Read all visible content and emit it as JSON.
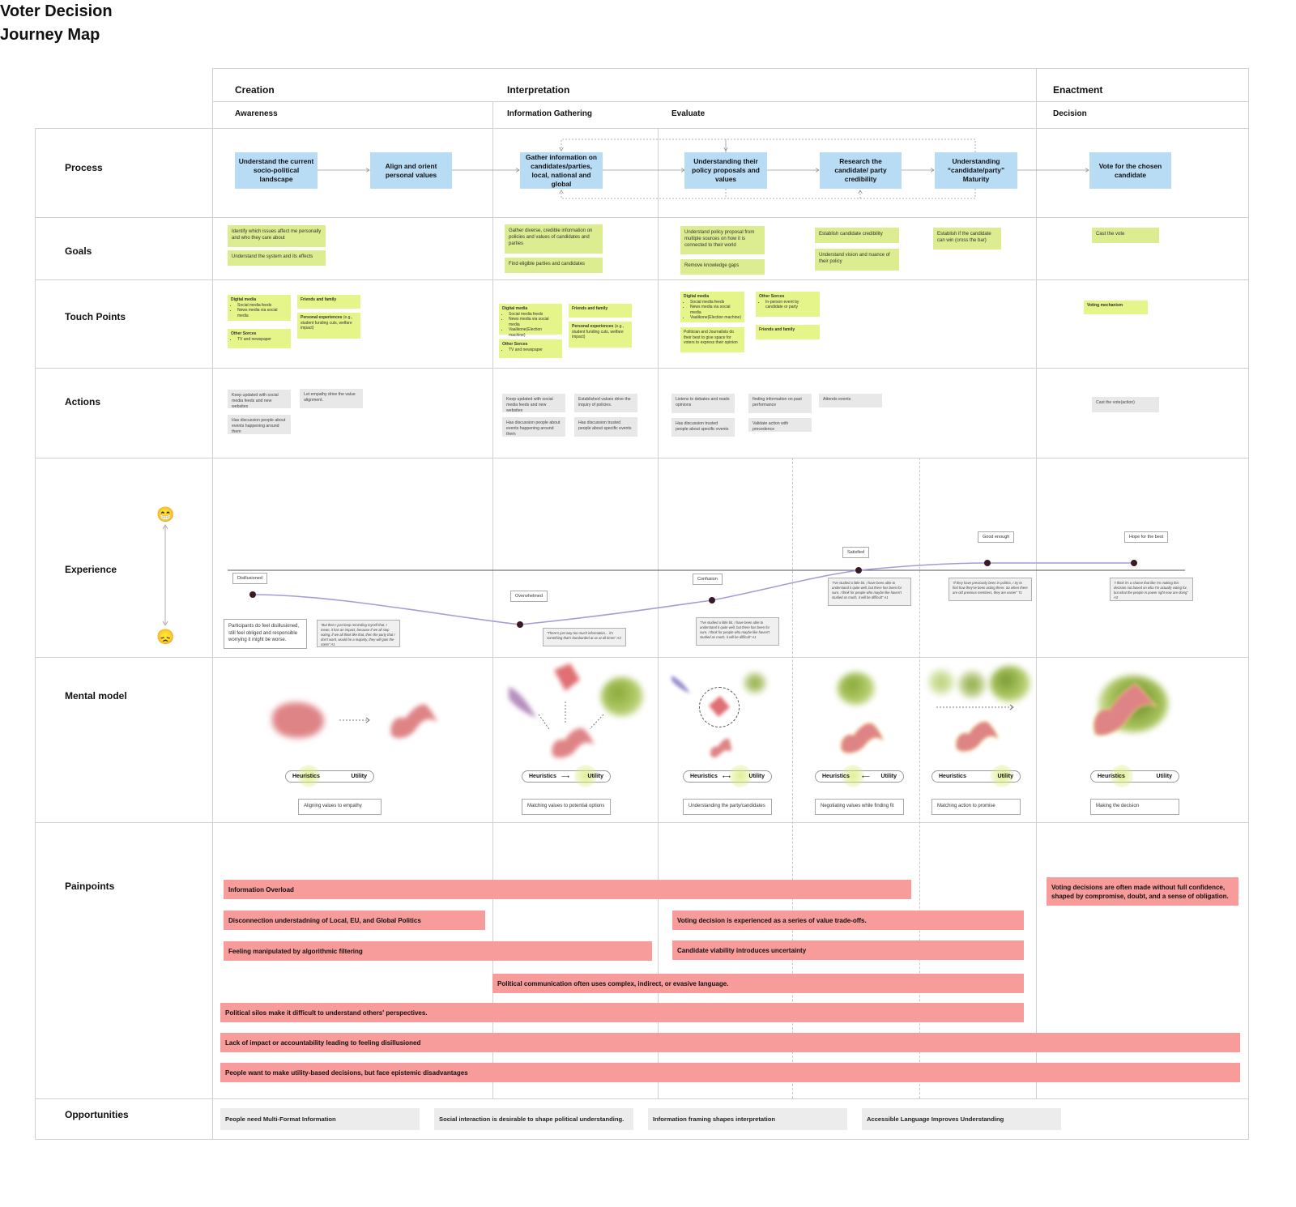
{
  "title": "Voter Decision Journey Map",
  "stages": [
    "Creation",
    "Interpretation",
    "Enactment"
  ],
  "phases": [
    "Awareness",
    "Information Gathering",
    "Evaluate",
    "Decision"
  ],
  "rows": [
    "Process",
    "Goals",
    "Touch Points",
    "Actions",
    "Experience",
    "Mental model",
    "Painpoints",
    "Opportunities"
  ],
  "process": [
    "Understand the current socio-political landscape",
    "Align and orient personal values",
    "Gather information on candidates/parties, local, national and global",
    "Understanding their policy proposals and values",
    "Research the candidate/ party credibility",
    "Understanding “candidate/party” Maturity",
    "Vote for the chosen candidate"
  ],
  "goals": [
    "Identify which issues affect me personally and who they care about",
    "Understand the system and its effects",
    "Gather diverse, credible information on policies and values of candidates and parties",
    "Find eligible parties and candidates",
    "Understand policy proposal from multiple sources on how it is connected to their world",
    "Remove knowledge gaps",
    "Establish candidate credibility",
    "Understand vision and nuance of their policy",
    "Establish if the candidate can win (cross the bar)",
    "Cast the vote"
  ],
  "touchpoints": {
    "digital_media": "Digital media",
    "social_media_feeds": "Social media feeds",
    "news_via_social": "News media via social media",
    "news_via_social_2": "News media via social media",
    "valgkone": "Vaalikone(Election machine)",
    "friends_family": "Friends and family",
    "personal_exp": "Personal experiences",
    "personal_exp_detail": "(e.g., student funding cuts, welfare impact)",
    "other_sorces": "Other Sorces",
    "tv_newspaper": "TV and newspaper",
    "in_person": "In-person event by candidate or party",
    "politicians": "Politician and Journalists do their best to give space for voters to express their opinion",
    "voting_mechanism": "Voting mechanism"
  },
  "actions": [
    "Keep updated with social media feeds and new websites",
    "Let empathy drive the value alignment.",
    "Has discussion people about events happening around them",
    "Keep updated with social media feeds and new websites",
    "Established values drive the inquiry of policies.",
    "Has discussion people about events happening around them",
    "Has discussion trusted people about specific events",
    "Listens to debates and reads opinions",
    "finding information on past performance",
    "Attends events",
    "Has discussion trusted people about specific events",
    "Validate action with precedence",
    "Cast the vote(action)"
  ],
  "experience": {
    "emotions": [
      "Disillusioned",
      "Overwhelmed",
      "Confusion",
      "Satisfied",
      "Good enough",
      "Hope for the best"
    ],
    "levels": [
      -0.3,
      -0.67,
      -0.37,
      0.0,
      0.09,
      0.09
    ],
    "summary": "Participants do feel disillusioned, still feel obliged and responsible worrying it might be worse.",
    "quotes": [
      "“But then I just keep reminding myself that, I mean, it has an impact, because if we all stop voting, if we all think like that, then the party that I don't want, would be a majority, they will gain the votes” A1",
      "“There's just way too much information… it's something that's bombarded at us at all times” A3",
      "“I've studied a little bit, I have been able to understand it quite well, but there has been for sure, I think for people who maybe like haven't studied as much, it will be difficult” A1",
      "“I've studied a little bit, I have been able to understand it quite well, but there has been for sure, I think for people who maybe like haven't studied as much, it will be difficult” A1",
      "“If they have previously been in politics, I try to find how they've been acting there. So when there are old previous members, they are easier” T1",
      "“I think it's a shame that like I'm making this decision not based on who I'm actually voting for, but what the people in power right now are doing” A3"
    ]
  },
  "mental_model": {
    "heuristics": "Heuristics",
    "utility": "Utility",
    "descriptions": [
      "Aligning values to empathy",
      "Matching values to potential options",
      "Understanding the party/candidates",
      "Negotiating values while finding fit",
      "Matching action to promise",
      "Making the decision"
    ]
  },
  "painpoints": [
    "Information Overload",
    "Disconnection understadning of Local, EU, and Global Politics",
    "Feeling manipulated by algorithmic filtering",
    "Voting decision is experienced as a series of value trade-offs.",
    "Candidate viability introduces uncertainty",
    "Political communication often uses complex, indirect, or evasive language.",
    "Political silos make it difficult to understand others' perspectives.",
    "Lack of impact or accountability leading to feeling disillusioned",
    "People want to make utility-based decisions, but face epistemic disadvantages",
    "Voting decisions are often made without full confidence, shaped by compromise, doubt, and a sense of obligation."
  ],
  "opportunities": [
    "People need Multi-Format Information",
    "Social interaction is desirable to shape political understanding.",
    "Information framing shapes interpretation",
    "Accessible Language Improves Understanding"
  ],
  "colors": {
    "process": "#b9dcf5",
    "goal": "#dcec90",
    "touchpoint": "#e6f58a",
    "action": "#e8e8e8",
    "pain": "#f79b9b",
    "curve": "#a99ad8",
    "dot": "#3a1a22"
  },
  "icons": [
    "grinning-emoji-icon",
    "sad-emoji-icon"
  ]
}
